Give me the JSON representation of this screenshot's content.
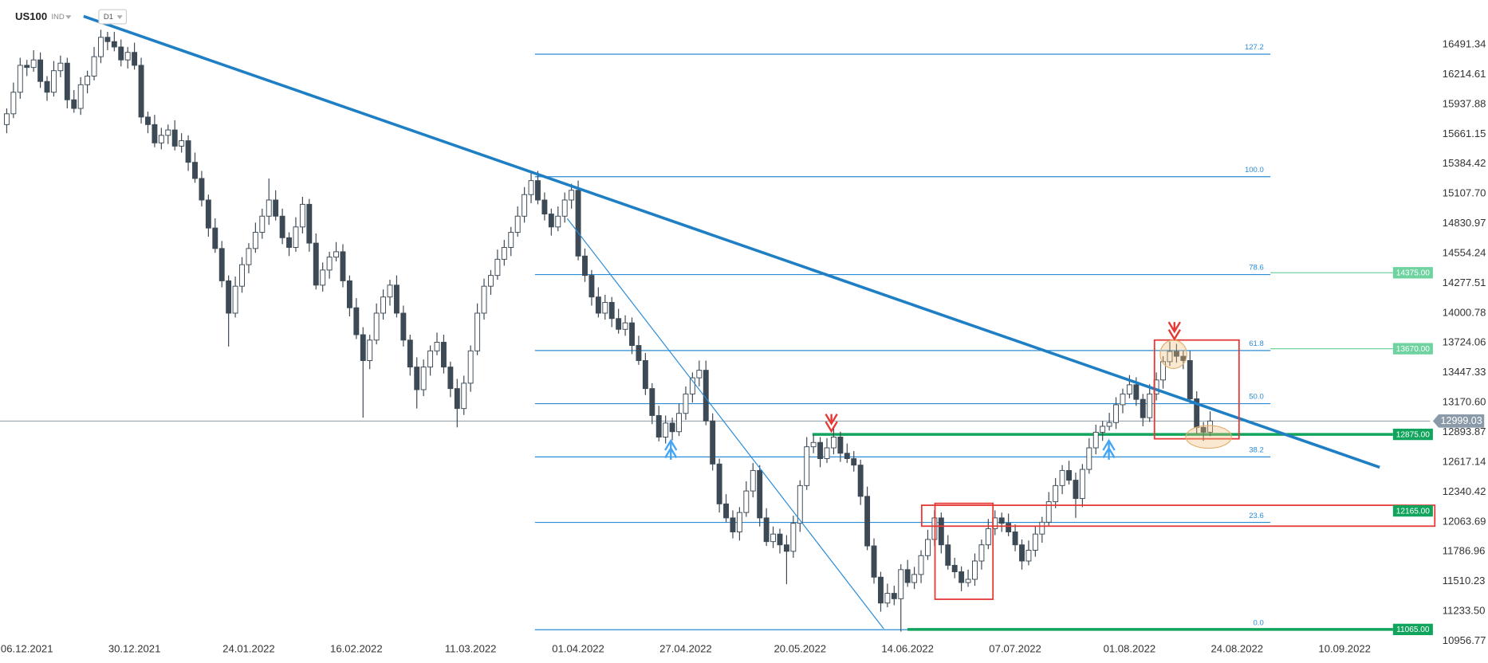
{
  "chart_data": {
    "type": "candlestick",
    "title": "US100",
    "instrument_type": "IND",
    "timeframe": "D1",
    "xlim": [
      -1,
      211
    ],
    "ylim": [
      10825,
      16905
    ],
    "xticks": [
      {
        "value": 3,
        "label": "06.12.2021"
      },
      {
        "value": 19,
        "label": "30.12.2021"
      },
      {
        "value": 36,
        "label": "24.01.2022"
      },
      {
        "value": 52,
        "label": "16.02.2022"
      },
      {
        "value": 69,
        "label": "11.03.2022"
      },
      {
        "value": 85,
        "label": "01.04.2022"
      },
      {
        "value": 101,
        "label": "27.04.2022"
      },
      {
        "value": 118,
        "label": "20.05.2022"
      },
      {
        "value": 134,
        "label": "14.06.2022"
      },
      {
        "value": 150,
        "label": "07.07.2022"
      },
      {
        "value": 167,
        "label": "01.08.2022"
      },
      {
        "value": 183,
        "label": "24.08.2022"
      },
      {
        "value": 199,
        "label": "10.09.2022"
      }
    ],
    "yticks": [
      16491.34,
      16214.61,
      15937.88,
      15661.15,
      15384.42,
      {
        "value": 15107.7,
        "label": "15107.70"
      },
      14830.97,
      14554.24,
      14277.51,
      14000.78,
      13724.06,
      13447.33,
      {
        "value": 13170.6,
        "label": "13170.60"
      },
      12893.87,
      12617.14,
      12340.42,
      12063.69,
      11786.96,
      11510.23,
      {
        "value": 11233.5,
        "label": "11233.50"
      },
      10956.77
    ],
    "up_color": "#ffffff",
    "down_color": "#3d4a56",
    "open": [
      15750,
      15850,
      16050,
      16300,
      16280,
      16350,
      16150,
      16050,
      16250,
      16320,
      15980,
      15900,
      16120,
      16200,
      16380,
      16560,
      16520,
      16470,
      16350,
      16420,
      16300,
      15820,
      15750,
      15580,
      15650,
      15700,
      15550,
      15600,
      15400,
      15250,
      15050,
      14790,
      14600,
      14300,
      14000,
      14250,
      14450,
      14600,
      14750,
      14900,
      15050,
      14900,
      14700,
      14610,
      14800,
      15010,
      14650,
      14260,
      14400,
      14520,
      14570,
      14300,
      14050,
      13800,
      13560,
      13750,
      14000,
      14150,
      14260,
      14000,
      13750,
      13500,
      13290,
      13500,
      13650,
      13730,
      13500,
      13300,
      13115,
      13350,
      13650,
      14000,
      14250,
      14350,
      14500,
      14610,
      14750,
      14900,
      15100,
      15230,
      15050,
      14920,
      14800,
      14900,
      15050,
      15140,
      14530,
      14350,
      14150,
      14000,
      14100,
      13950,
      13850,
      13910,
      13700,
      13560,
      13300,
      13050,
      12850,
      12980,
      12900,
      13070,
      13250,
      13400,
      13470,
      13000,
      12600,
      12230,
      12100,
      11970,
      12150,
      12350,
      12540,
      12100,
      11880,
      11950,
      11850,
      11790,
      12050,
      12400,
      12760,
      12800,
      12650,
      12750,
      12850,
      12700,
      12650,
      12590,
      12300,
      11840,
      11550,
      11310,
      11400,
      11350,
      11620,
      11500,
      11575,
      11750,
      11900,
      12100,
      11850,
      11660,
      11600,
      11500,
      11530,
      11700,
      11850,
      12000,
      12100,
      12050,
      11970,
      11850,
      11700,
      11800,
      11950,
      12060,
      12250,
      12400,
      12540,
      12450,
      12280,
      12550,
      12750,
      12895,
      12950,
      12985,
      13150,
      13250,
      13335,
      13200,
      13030,
      13250,
      13380,
      13550,
      13645,
      13600,
      13560,
      13205,
      12940,
      12895
    ],
    "high": [
      15900,
      16140,
      16370,
      16350,
      16440,
      16420,
      16200,
      16340,
      16390,
      16370,
      16070,
      16190,
      16250,
      16470,
      16630,
      16610,
      16610,
      16540,
      16470,
      16510,
      16370,
      15870,
      15840,
      15720,
      15750,
      15790,
      15670,
      15650,
      15490,
      15320,
      15100,
      14880,
      14670,
      14350,
      14340,
      14520,
      14650,
      14840,
      14970,
      15250,
      15140,
      14970,
      14750,
      14890,
      15080,
      15060,
      14740,
      14470,
      14570,
      14660,
      14640,
      14350,
      14140,
      13870,
      13800,
      14090,
      14220,
      14310,
      14350,
      14070,
      13800,
      13590,
      13570,
      13700,
      13820,
      13800,
      13550,
      13390,
      13420,
      13700,
      14090,
      14320,
      14400,
      14590,
      14680,
      14800,
      14990,
      15170,
      15310,
      15320,
      15120,
      14970,
      14990,
      15120,
      15200,
      15230,
      14600,
      14400,
      14240,
      14170,
      14150,
      14040,
      13980,
      13960,
      13790,
      13630,
      13350,
      13140,
      13050,
      13030,
      13160,
      13320,
      13450,
      13560,
      13560,
      13070,
      12650,
      12320,
      12170,
      12200,
      12440,
      12610,
      12590,
      12190,
      12020,
      12000,
      11940,
      12120,
      12450,
      12850,
      12870,
      12850,
      12840,
      12950,
      12900,
      12790,
      12720,
      12640,
      12390,
      11910,
      11600,
      11490,
      11470,
      11670,
      11710,
      11645,
      11800,
      11990,
      12170,
      12150,
      11940,
      11730,
      11650,
      11620,
      11770,
      11900,
      12090,
      12170,
      12150,
      12140,
      12040,
      11900,
      11890,
      12020,
      12110,
      12340,
      12470,
      12590,
      12630,
      12520,
      12600,
      12840,
      12965,
      13000,
      13075,
      13220,
      13300,
      13425,
      13405,
      13250,
      13340,
      13450,
      13600,
      13735,
      13715,
      13650,
      13650,
      13275,
      12990,
      13089
    ],
    "low": [
      15670,
      15810,
      15990,
      16200,
      16240,
      16090,
      15970,
      16010,
      16190,
      15900,
      15860,
      15840,
      16040,
      16160,
      16320,
      16440,
      16430,
      16290,
      16270,
      16260,
      15760,
      15670,
      15540,
      15520,
      15570,
      15510,
      15490,
      15320,
      15210,
      14990,
      14710,
      14560,
      14240,
      13690,
      13960,
      14190,
      14370,
      14560,
      14690,
      14820,
      14860,
      14640,
      14530,
      14570,
      14740,
      14570,
      14220,
      14200,
      14320,
      14480,
      14240,
      13970,
      13760,
      13030,
      13480,
      13710,
      13940,
      14070,
      13960,
      13690,
      13420,
      13115,
      13230,
      13420,
      13610,
      13440,
      13220,
      12940,
      13055,
      13270,
      13610,
      13940,
      14170,
      14310,
      14440,
      14530,
      14710,
      14840,
      15020,
      15010,
      14860,
      14720,
      14760,
      14840,
      14970,
      14490,
      14290,
      14070,
      13960,
      13940,
      13870,
      13810,
      13790,
      13620,
      13520,
      13240,
      12970,
      12810,
      12790,
      12820,
      12860,
      13010,
      13170,
      13320,
      12960,
      12540,
      12150,
      12060,
      11910,
      11890,
      12110,
      12290,
      12020,
      11840,
      11820,
      11770,
      11485,
      11730,
      11970,
      12360,
      12700,
      12570,
      12610,
      12690,
      12620,
      12610,
      12530,
      12220,
      11800,
      11490,
      11230,
      11270,
      11290,
      11045,
      11460,
      11440,
      11495,
      11710,
      11840,
      11770,
      11620,
      11540,
      11420,
      11460,
      11470,
      11620,
      11810,
      11940,
      11970,
      11930,
      11790,
      11620,
      11660,
      11740,
      11870,
      12020,
      12190,
      12320,
      12410,
      12100,
      12200,
      12510,
      12690,
      12815,
      12910,
      12925,
      13070,
      13210,
      13140,
      12950,
      12990,
      13190,
      13300,
      13510,
      13540,
      13480,
      13165,
      12880,
      12815,
      12859
    ],
    "close": [
      15850,
      16050,
      16300,
      16280,
      16350,
      16150,
      16050,
      16250,
      16320,
      15980,
      15900,
      16120,
      16200,
      16380,
      16560,
      16520,
      16470,
      16350,
      16420,
      16300,
      15820,
      15750,
      15580,
      15650,
      15700,
      15550,
      15600,
      15400,
      15250,
      15050,
      14790,
      14600,
      14300,
      14000,
      14250,
      14450,
      14600,
      14750,
      14900,
      15050,
      14900,
      14700,
      14610,
      14800,
      15010,
      14650,
      14260,
      14400,
      14520,
      14570,
      14300,
      14050,
      13800,
      13560,
      13750,
      14000,
      14150,
      14260,
      14000,
      13750,
      13500,
      13290,
      13500,
      13650,
      13730,
      13500,
      13300,
      13115,
      13350,
      13650,
      14000,
      14250,
      14350,
      14500,
      14610,
      14750,
      14900,
      15100,
      15230,
      15050,
      14920,
      14800,
      14900,
      15050,
      15140,
      14530,
      14350,
      14150,
      14000,
      14100,
      13950,
      13850,
      13910,
      13700,
      13560,
      13300,
      13050,
      12850,
      12980,
      12900,
      13070,
      13250,
      13400,
      13470,
      13000,
      12600,
      12230,
      12100,
      11970,
      12150,
      12350,
      12540,
      12100,
      11880,
      11950,
      11850,
      11790,
      12050,
      12400,
      12760,
      12800,
      12650,
      12750,
      12850,
      12700,
      12650,
      12590,
      12300,
      11840,
      11550,
      11310,
      11400,
      11350,
      11620,
      11500,
      11575,
      11750,
      11900,
      12100,
      11850,
      11660,
      11600,
      11500,
      11530,
      11700,
      11850,
      12000,
      12100,
      12050,
      11970,
      11850,
      11700,
      11800,
      11950,
      12060,
      12250,
      12400,
      12540,
      12450,
      12280,
      12550,
      12750,
      12895,
      12950,
      12985,
      13150,
      13250,
      13335,
      13200,
      13030,
      13250,
      13380,
      13550,
      13645,
      13600,
      13560,
      13205,
      12940,
      12895,
      12999
    ],
    "fib_levels": [
      {
        "value": 16403,
        "label": "127.2"
      },
      {
        "value": 15266,
        "label": "100.0"
      },
      {
        "value": 14358,
        "label": "78.6"
      },
      {
        "value": 13653,
        "label": "61.8"
      },
      {
        "value": 13160,
        "label": "50.0"
      },
      {
        "value": 12666,
        "label": "38.2"
      },
      {
        "value": 12058,
        "label": "23.6"
      },
      {
        "value": 11062,
        "label": "0.0"
      }
    ],
    "fib_color": "#2a8bd6",
    "price_labels": [
      {
        "value": 14375,
        "label": "14375.00",
        "color": "#6fd3a0"
      },
      {
        "value": 13670,
        "label": "13670.00",
        "color": "#6fd3a0"
      },
      {
        "value": 12875,
        "label": "12875.00",
        "color": "#10a45c"
      },
      {
        "value": 12165,
        "label": "12165.00",
        "color": "#10a45c"
      },
      {
        "value": 11065,
        "label": "11065.00",
        "color": "#10a45c"
      }
    ],
    "last_price": 12999.03
  }
}
